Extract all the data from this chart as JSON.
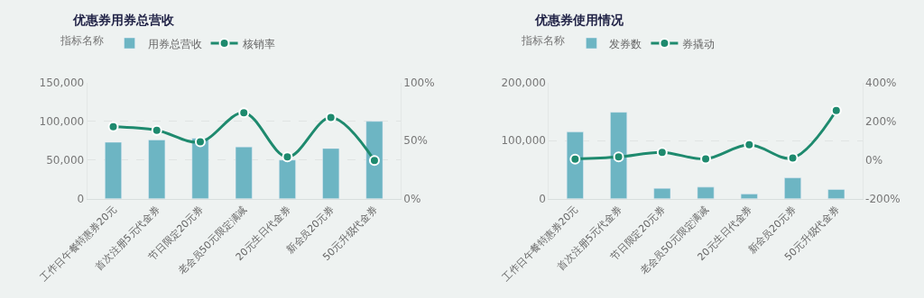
{
  "chart_data": [
    {
      "type": "bar",
      "title": "优惠券用券总营收",
      "legend_title": "指标名称",
      "legend": "top left",
      "grid": "y",
      "marker": "circle",
      "categories": [
        "工作日午餐特惠券20元",
        "首次注册5元代金券",
        "节日限定20元券",
        "老会员50元限定满减",
        "20元生日代金券",
        "新会员20元券",
        "50元升级代金券"
      ],
      "series": [
        {
          "name": "用券总营收",
          "color": "#6db5c3",
          "values": [
            73000,
            76000,
            78000,
            67000,
            50000,
            65000,
            100000
          ]
        },
        {
          "name": "核销率",
          "type": "line",
          "axis": "y2",
          "color": "#1e8a6e",
          "values": [
            62,
            59,
            49,
            74,
            36,
            70,
            33
          ]
        }
      ],
      "ylim": [
        0,
        150000
      ],
      "yticks": [
        {
          "value": 0,
          "label": "0"
        },
        {
          "value": 50000,
          "label": "50,000"
        },
        {
          "value": 100000,
          "label": "100,000"
        },
        {
          "value": 150000,
          "label": "150,000"
        }
      ],
      "y2lim": [
        0,
        100
      ],
      "y2ticks": [
        {
          "value": 0,
          "label": "0%"
        },
        {
          "value": 50,
          "label": "50%"
        },
        {
          "value": 100,
          "label": "100%"
        }
      ]
    },
    {
      "type": "bar",
      "title": "优惠券使用情况",
      "legend_title": "指标名称",
      "legend": "top left",
      "grid": "y",
      "marker": "circle",
      "categories": [
        "工作日午餐特惠券20元",
        "首次注册5元代金券",
        "节日限定20元券",
        "老会员50元限定满减",
        "20元生日代金券",
        "新会员20元券",
        "50元升级代金券"
      ],
      "series": [
        {
          "name": "发券数",
          "color": "#6db5c3",
          "values": [
            115000,
            149000,
            18000,
            20000,
            8000,
            36000,
            16000
          ]
        },
        {
          "name": "券撬动",
          "type": "line",
          "axis": "y2",
          "color": "#1e8a6e",
          "values": [
            5,
            16,
            40,
            6,
            79,
            11,
            256
          ]
        }
      ],
      "ylim": [
        0,
        200000
      ],
      "yticks": [
        {
          "value": 0,
          "label": "0"
        },
        {
          "value": 100000,
          "label": "100,000"
        },
        {
          "value": 200000,
          "label": "200,000"
        }
      ],
      "y2lim": [
        -200,
        400
      ],
      "y2ticks": [
        {
          "value": -200,
          "label": "-200%"
        },
        {
          "value": 0,
          "label": "0%"
        },
        {
          "value": 200,
          "label": "200%"
        },
        {
          "value": 400,
          "label": "400%"
        }
      ]
    }
  ]
}
